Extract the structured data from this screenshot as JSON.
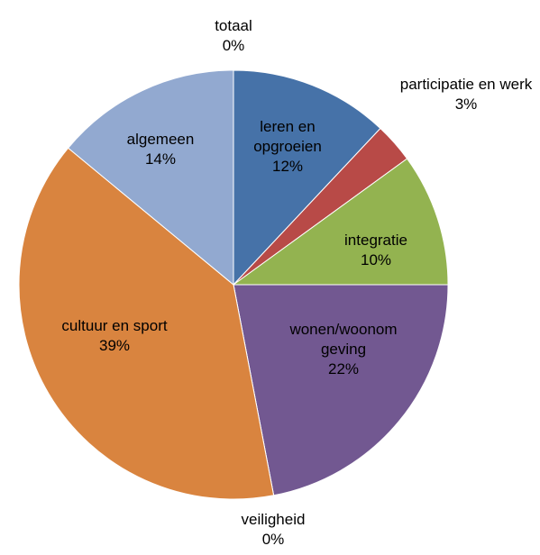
{
  "chart_data": {
    "type": "pie",
    "categories": [
      "totaal",
      "leren en opgroeien",
      "participatie en werk",
      "integratie",
      "wonen/woonomgeving",
      "veiligheid",
      "cultuur en sport",
      "algemeen"
    ],
    "values": [
      0,
      12,
      3,
      10,
      22,
      0,
      39,
      14
    ],
    "value_labels": [
      "0%",
      "12%",
      "3%",
      "10%",
      "22%",
      "0%",
      "39%",
      "14%"
    ],
    "colors": [
      "#4672a8",
      "#4672a8",
      "#b84a47",
      "#93b350",
      "#725891",
      "#d9843f",
      "#d9843f",
      "#92a9d0"
    ]
  }
}
